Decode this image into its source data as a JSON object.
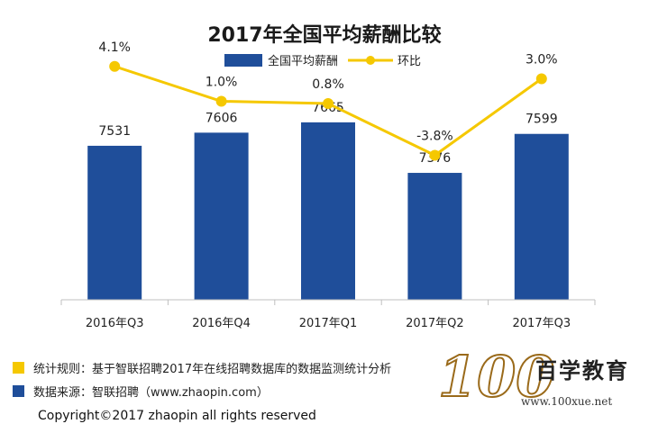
{
  "chart_data": {
    "type": "bar",
    "title": "2017年全国平均薪酬比较",
    "categories": [
      "2016年Q3",
      "2016年Q4",
      "2017年Q1",
      "2017年Q2",
      "2017年Q3"
    ],
    "series": [
      {
        "name": "全国平均薪酬",
        "type": "bar",
        "values": [
          7531,
          7606,
          7665,
          7376,
          7599
        ],
        "color": "#1f4e9a"
      },
      {
        "name": "环比",
        "type": "line",
        "values": [
          4.1,
          1.0,
          0.8,
          -3.8,
          3.0
        ],
        "labels": [
          "4.1%",
          "1.0%",
          "0.8%",
          "-3.8%",
          "3.0%"
        ],
        "color": "#f5c800"
      }
    ],
    "legend_position": "top-center",
    "grid": false
  },
  "notes": [
    {
      "text": "统计规则：基于智联招聘2017年在线招聘数据库的数据监测统计分析",
      "color": "#f5c800"
    },
    {
      "text": "数据来源：智联招聘（www.zhaopin.com）",
      "color": "#1f4e9a"
    }
  ],
  "copyright": "Copyright©2017 zhaopin all rights reserved",
  "logo": {
    "digits": "100",
    "name": "百学教育",
    "url": "www.100xue.net"
  }
}
